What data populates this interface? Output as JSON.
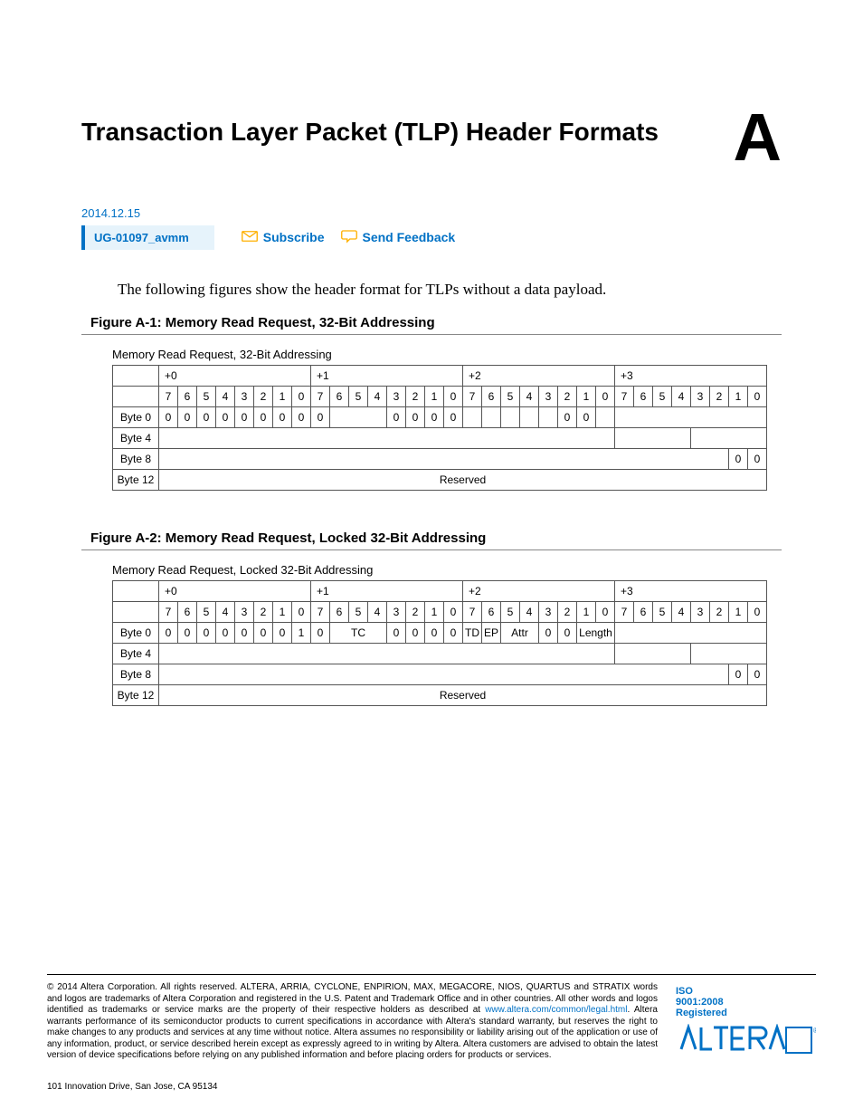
{
  "page": {
    "title": "Transaction Layer Packet (TLP) Header Formats",
    "appendix_letter": "A",
    "date": "2014.12.15",
    "doc_id": "UG-01097_avmm",
    "subscribe": "Subscribe",
    "send_feedback": "Send Feedback",
    "intro": "The following figures show the header format for TLPs without a data payload."
  },
  "figures": [
    {
      "title": "Figure A-1: Memory Read Request, 32-Bit Addressing",
      "caption": "Memory Read Request, 32-Bit Addressing",
      "offset_headers": [
        "+0",
        "+1",
        "+2",
        "+3"
      ],
      "bit_headers": [
        "7",
        "6",
        "5",
        "4",
        "3",
        "2",
        "1",
        "0",
        "7",
        "6",
        "5",
        "4",
        "3",
        "2",
        "1",
        "0",
        "7",
        "6",
        "5",
        "4",
        "3",
        "2",
        "1",
        "0",
        "7",
        "6",
        "5",
        "4",
        "3",
        "2",
        "1",
        "0"
      ],
      "rows": [
        {
          "label": "Byte 0",
          "cells": [
            {
              "v": "0",
              "s": 1
            },
            {
              "v": "0",
              "s": 1
            },
            {
              "v": "0",
              "s": 1
            },
            {
              "v": "0",
              "s": 1
            },
            {
              "v": "0",
              "s": 1
            },
            {
              "v": "0",
              "s": 1
            },
            {
              "v": "0",
              "s": 1
            },
            {
              "v": "0",
              "s": 1
            },
            {
              "v": "0",
              "s": 1
            },
            {
              "v": "",
              "s": 3
            },
            {
              "v": "0",
              "s": 1
            },
            {
              "v": "0",
              "s": 1
            },
            {
              "v": "0",
              "s": 1
            },
            {
              "v": "0",
              "s": 1
            },
            {
              "v": "",
              "s": 1
            },
            {
              "v": "",
              "s": 1
            },
            {
              "v": "",
              "s": 1
            },
            {
              "v": "",
              "s": 1
            },
            {
              "v": "",
              "s": 1
            },
            {
              "v": "0",
              "s": 1
            },
            {
              "v": "0",
              "s": 1
            },
            {
              "v": "",
              "s": 1
            },
            {
              "v": "",
              "s": 8
            }
          ]
        },
        {
          "label": "Byte 4",
          "cells": [
            {
              "v": "",
              "s": 24
            },
            {
              "v": "",
              "s": 4
            },
            {
              "v": "",
              "s": 4
            }
          ]
        },
        {
          "label": "Byte 8",
          "cells": [
            {
              "v": "",
              "s": 30
            },
            {
              "v": "0",
              "s": 1
            },
            {
              "v": "0",
              "s": 1
            }
          ]
        },
        {
          "label": "Byte 12",
          "cells": [
            {
              "v": "Reserved",
              "s": 32
            }
          ]
        }
      ]
    },
    {
      "title": "Figure A-2: Memory Read Request, Locked 32-Bit Addressing",
      "caption": "Memory Read Request, Locked 32-Bit Addressing",
      "offset_headers": [
        "+0",
        "+1",
        "+2",
        "+3"
      ],
      "bit_headers": [
        "7",
        "6",
        "5",
        "4",
        "3",
        "2",
        "1",
        "0",
        "7",
        "6",
        "5",
        "4",
        "3",
        "2",
        "1",
        "0",
        "7",
        "6",
        "5",
        "4",
        "3",
        "2",
        "1",
        "0",
        "7",
        "6",
        "5",
        "4",
        "3",
        "2",
        "1",
        "0"
      ],
      "rows": [
        {
          "label": "Byte 0",
          "cells": [
            {
              "v": "0",
              "s": 1
            },
            {
              "v": "0",
              "s": 1
            },
            {
              "v": "0",
              "s": 1
            },
            {
              "v": "0",
              "s": 1
            },
            {
              "v": "0",
              "s": 1
            },
            {
              "v": "0",
              "s": 1
            },
            {
              "v": "0",
              "s": 1
            },
            {
              "v": "1",
              "s": 1
            },
            {
              "v": "0",
              "s": 1
            },
            {
              "v": "TC",
              "s": 3
            },
            {
              "v": "0",
              "s": 1
            },
            {
              "v": "0",
              "s": 1
            },
            {
              "v": "0",
              "s": 1
            },
            {
              "v": "0",
              "s": 1
            },
            {
              "v": "TD",
              "s": 1
            },
            {
              "v": "EP",
              "s": 1
            },
            {
              "v": "Attr",
              "s": 2
            },
            {
              "v": "0",
              "s": 1
            },
            {
              "v": "0",
              "s": 1
            },
            {
              "v": "Length",
              "s": 2
            },
            {
              "v": "",
              "s": 8
            }
          ]
        },
        {
          "label": "Byte 4",
          "cells": [
            {
              "v": "",
              "s": 24
            },
            {
              "v": "",
              "s": 4
            },
            {
              "v": "",
              "s": 4
            }
          ]
        },
        {
          "label": "Byte 8",
          "cells": [
            {
              "v": "",
              "s": 30
            },
            {
              "v": "0",
              "s": 1
            },
            {
              "v": "0",
              "s": 1
            }
          ]
        },
        {
          "label": "Byte 12",
          "cells": [
            {
              "v": "Reserved",
              "s": 32
            }
          ]
        }
      ]
    }
  ],
  "footer": {
    "copyright": "2014 Altera Corporation. All rights reserved. ALTERA, ARRIA, CYCLONE, ENPIRION, MAX, MEGACORE, NIOS, QUARTUS and STRATIX words and logos are trademarks of Altera Corporation and registered in the U.S. Patent and Trademark Office and in other countries. All other words and logos identified as trademarks or service marks are the property of their respective holders as described at ",
    "legal_url_text": "www.altera.com/common/legal.html",
    "copyright2": ". Altera warrants performance of its semiconductor products to current specifications in accordance with Altera's standard warranty, but reserves the right to make changes to any products and services at any time without notice. Altera assumes no responsibility or liability arising out of the application or use of any information, product, or service described herein except as expressly agreed to in writing by Altera. Altera customers are advised to obtain the latest version of device specifications before relying on any published information and before placing orders for products or services.",
    "iso_line1": "ISO",
    "iso_line2": "9001:2008",
    "iso_line3": "Registered",
    "address": "101 Innovation Drive, San Jose, CA 95134"
  },
  "colors": {
    "link_blue": "#0071c5",
    "icon_orange": "#ffb000",
    "rule_grey": "#888888"
  }
}
